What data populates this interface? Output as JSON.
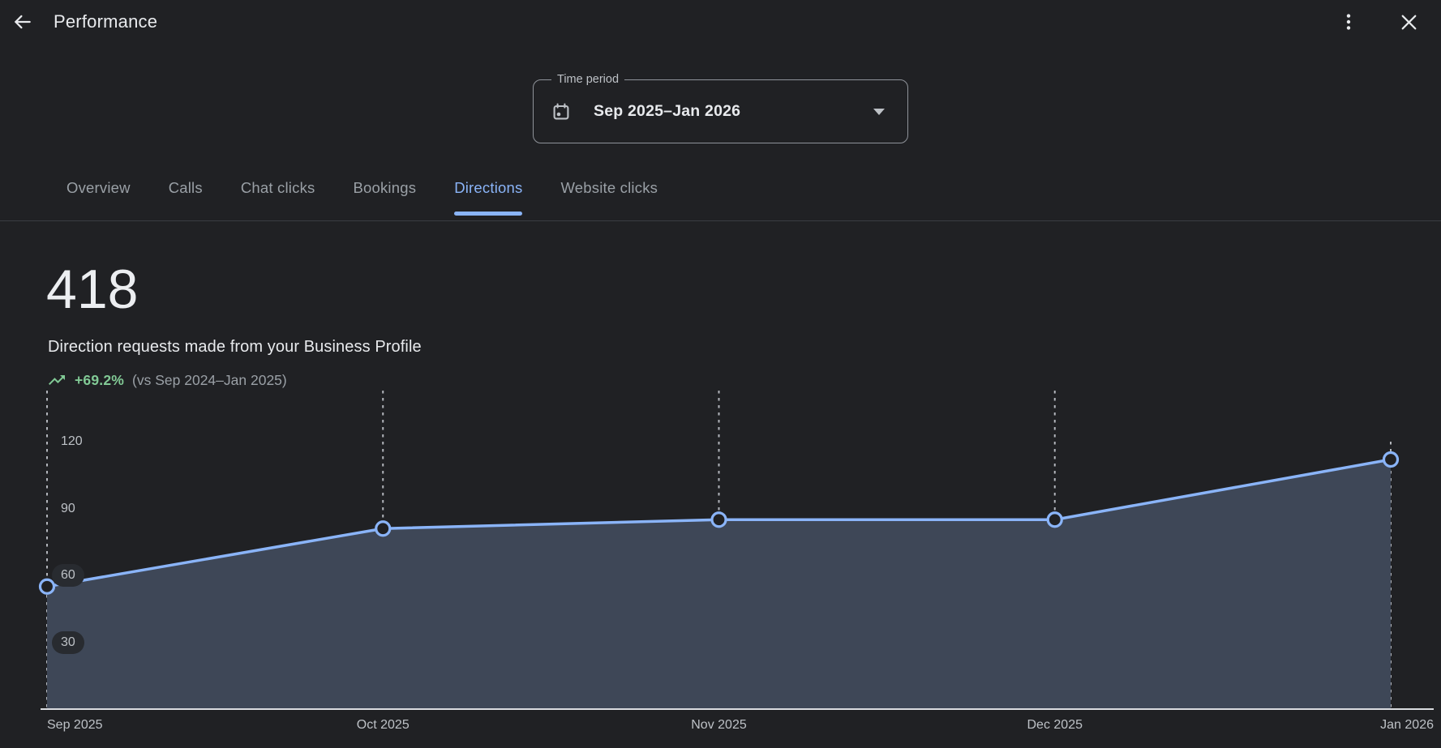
{
  "header": {
    "title": "Performance"
  },
  "appbar_icons": {
    "back": "back-arrow",
    "menu": "kebab-menu",
    "close": "close-x"
  },
  "time_period": {
    "label": "Time period",
    "value": "Sep 2025–Jan 2026",
    "icon": "calendar-icon",
    "caret": "dropdown-caret"
  },
  "tabs": [
    {
      "label": "Overview",
      "active": false
    },
    {
      "label": "Calls",
      "active": false
    },
    {
      "label": "Chat clicks",
      "active": false
    },
    {
      "label": "Bookings",
      "active": false
    },
    {
      "label": "Directions",
      "active": true
    },
    {
      "label": "Website clicks",
      "active": false
    }
  ],
  "metric": {
    "value": "418",
    "description": "Direction requests made from your Business Profile",
    "delta": "+69.2%",
    "delta_icon": "trending-up-icon",
    "comparison": "(vs Sep 2024–Jan 2025)"
  },
  "colors": {
    "background": "#202124",
    "text_primary": "#e8eaed",
    "text_secondary": "#9aa0a6",
    "accent_blue": "#8ab4f8",
    "positive_green": "#81c995",
    "chart_line": "#8ab4f8",
    "chart_area_fill": "#3e4757",
    "chart_point_fill": "#202124",
    "chart_grid": "#b2b5bb",
    "chart_baseline": "#dadce0",
    "tick_label": "#bdc1c6",
    "tick_pill_bg": "#282b30",
    "divider": "#3a3d42"
  },
  "chart_data": {
    "type": "area",
    "title": "Direction requests by month",
    "x": [
      "Sep 2025",
      "Oct 2025",
      "Nov 2025",
      "Dec 2025",
      "Jan 2026"
    ],
    "values": [
      55,
      81,
      85,
      85,
      112
    ],
    "series": [
      {
        "name": "Direction requests",
        "values": [
          55,
          81,
          85,
          85,
          112
        ]
      }
    ],
    "yticks": [
      30,
      60,
      90,
      120
    ],
    "yticks_with_pill": [
      30,
      60
    ],
    "ylim": [
      0,
      147
    ],
    "xlabel": "",
    "ylabel": "",
    "grid": "dashed-vertical",
    "legend": "none",
    "markers": "open-circle"
  }
}
